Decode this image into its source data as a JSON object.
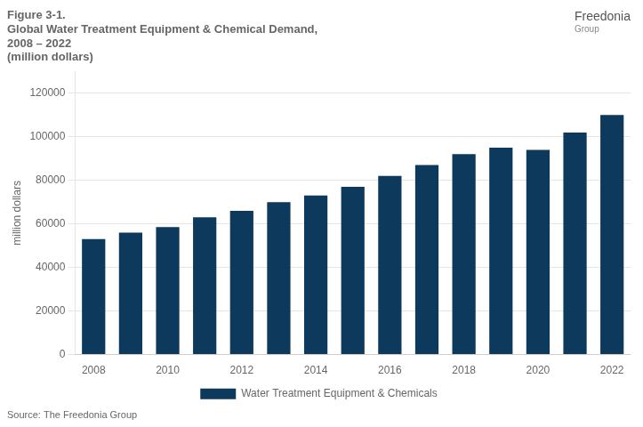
{
  "chart_data": {
    "type": "bar",
    "title": [
      "Figure 3-1.",
      "Global Water Treatment Equipment & Chemical Demand,",
      "2008 – 2022",
      "(million dollars)"
    ],
    "y_label": "million dollars",
    "categories": [
      "2008",
      null,
      "2010",
      null,
      "2012",
      null,
      "2014",
      null,
      "2016",
      null,
      "2018",
      null,
      "2020",
      null,
      "2022"
    ],
    "series": [
      {
        "name": "Water Treatment Equipment & Chemicals",
        "color": "#0d3a5c",
        "values": [
          53000,
          56000,
          58500,
          63000,
          66000,
          70000,
          73000,
          77000,
          82000,
          87000,
          92000,
          95000,
          94000,
          102000,
          110000
        ]
      }
    ],
    "ylim": [
      0,
      130000
    ],
    "yticks": [
      0,
      20000,
      40000,
      60000,
      80000,
      100000,
      120000
    ],
    "grid": true,
    "legend": "bottom",
    "annotations": [
      "Freedonia",
      "Group"
    ],
    "source": "Source: The Freedonia Group"
  }
}
